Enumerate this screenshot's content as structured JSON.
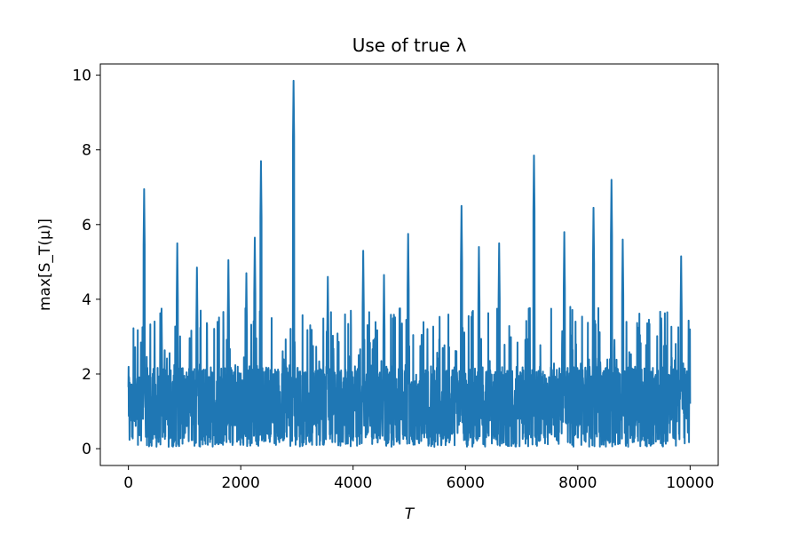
{
  "chart_data": {
    "type": "line",
    "title": "Use of true λ",
    "xlabel": "T",
    "ylabel": "max[S_T(μ)]",
    "xlim": [
      -500,
      10500
    ],
    "ylim": [
      -0.45,
      10.3
    ],
    "xticks": [
      0,
      2000,
      4000,
      6000,
      8000,
      10000
    ],
    "xtick_labels": [
      "0",
      "2000",
      "4000",
      "6000",
      "8000",
      "10000"
    ],
    "yticks": [
      0,
      2,
      4,
      6,
      8,
      10
    ],
    "ytick_labels": [
      "0",
      "2",
      "4",
      "6",
      "8",
      "10"
    ],
    "grid": false,
    "legend": "none",
    "series": [
      {
        "color": "#1f77b4",
        "x_range": [
          0,
          10000
        ],
        "peaks": [
          {
            "x": 280,
            "y": 6.95
          },
          {
            "x": 590,
            "y": 3.75
          },
          {
            "x": 870,
            "y": 5.5
          },
          {
            "x": 1220,
            "y": 4.85
          },
          {
            "x": 1780,
            "y": 5.05
          },
          {
            "x": 2100,
            "y": 4.7
          },
          {
            "x": 2250,
            "y": 5.65
          },
          {
            "x": 2360,
            "y": 7.7
          },
          {
            "x": 2940,
            "y": 9.85
          },
          {
            "x": 3550,
            "y": 4.6
          },
          {
            "x": 4180,
            "y": 5.3
          },
          {
            "x": 4550,
            "y": 4.65
          },
          {
            "x": 4980,
            "y": 5.75
          },
          {
            "x": 5930,
            "y": 6.5
          },
          {
            "x": 6240,
            "y": 5.4
          },
          {
            "x": 6600,
            "y": 5.5
          },
          {
            "x": 7220,
            "y": 7.85
          },
          {
            "x": 7760,
            "y": 5.8
          },
          {
            "x": 8280,
            "y": 6.45
          },
          {
            "x": 8600,
            "y": 7.2
          },
          {
            "x": 8800,
            "y": 5.6
          },
          {
            "x": 9840,
            "y": 5.15
          }
        ]
      }
    ]
  }
}
